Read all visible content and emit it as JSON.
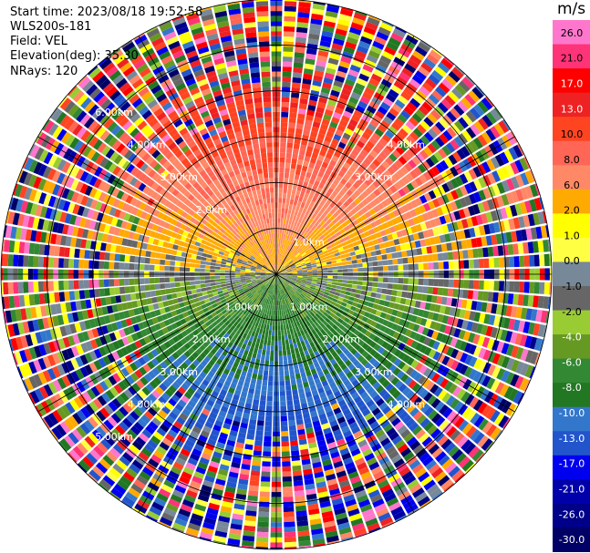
{
  "header": {
    "start_time": "Start time: 2023/08/18 19:52:58",
    "instrument": "WLS200s-181",
    "field": "Field: VEL",
    "elevation": "Elevation(deg): 35.30",
    "nrays": "NRays: 120"
  },
  "chart_data": {
    "type": "heatmap",
    "projection": "polar-ppi",
    "n_rays": 120,
    "max_range_km": 6.0,
    "range_rings_km": [
      1.0,
      2.0,
      3.0,
      4.0,
      5.0,
      6.0
    ],
    "range_labels": [
      "1.0km",
      "1.00km",
      "2.0km",
      "2.00km",
      "3.00km",
      "4.00km",
      "5.00km",
      "6.00km"
    ],
    "spoke_angles_deg": [
      0,
      30,
      60,
      90,
      120,
      150,
      180,
      210,
      240,
      270,
      300,
      330
    ],
    "colorbar": {
      "unit": "m/s",
      "ticks": [
        "26.0",
        "21.0",
        "17.0",
        "13.0",
        "10.0",
        "8.0",
        "6.0",
        "2.0",
        "1.0",
        "0.0",
        "-1.0",
        "-2.0",
        "-4.0",
        "-6.0",
        "-8.0",
        "-10.0",
        "-13.0",
        "-17.0",
        "-21.0",
        "-26.0",
        "-30.0"
      ],
      "colors": [
        "#ff77cc",
        "#ff3377",
        "#ff0000",
        "#ee2222",
        "#ff4422",
        "#ff6655",
        "#ff8866",
        "#ffaa00",
        "#ffff00",
        "#ffff44",
        "#778899",
        "#666666",
        "#99cc33",
        "#669922",
        "#338833",
        "#227722",
        "#3377cc",
        "#2255cc",
        "#0000ee",
        "#0000aa",
        "#000088",
        "#000066"
      ]
    },
    "sectors": {
      "north": "positive, +2 to +13 m/s (yellow/orange/red)",
      "south": "negative, -4 to -10 m/s (green/blue)",
      "east_west": "near zero (gray)",
      "outer_ring": "noise, all colors"
    }
  }
}
